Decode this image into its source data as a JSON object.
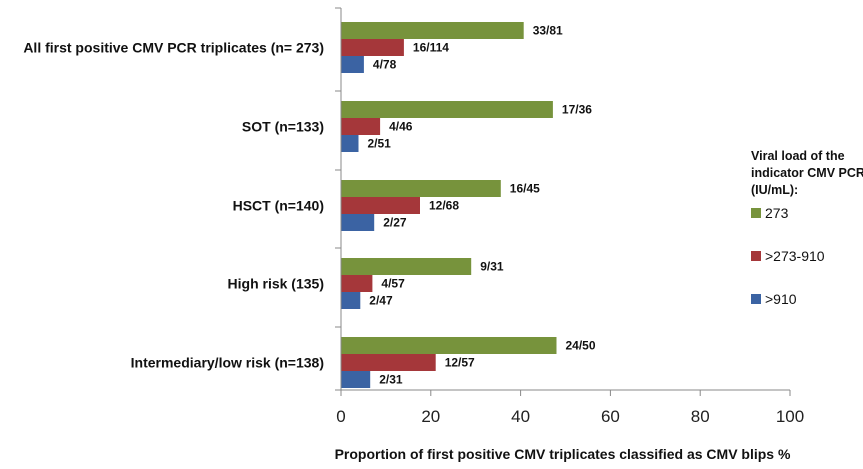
{
  "chart_data": {
    "type": "bar",
    "orientation": "horizontal",
    "categories": [
      "All first positive CMV PCR triplicates (n= 273)",
      "SOT (n=133)",
      "HSCT (n=140)",
      "High risk (135)",
      "Intermediary/low risk (n=138)"
    ],
    "series": [
      {
        "name": "273",
        "color": "#77933C",
        "values": [
          40.7,
          47.2,
          35.6,
          29.0,
          48.0
        ],
        "labels": [
          "33/81",
          "17/36",
          "16/45",
          "9/31",
          "24/50"
        ]
      },
      {
        "name": ">273-910",
        "color": "#A5373A",
        "values": [
          14.0,
          8.7,
          17.6,
          7.0,
          21.1
        ],
        "labels": [
          "16/114",
          "4/46",
          "12/68",
          "4/57",
          "12/57"
        ]
      },
      {
        "name": ">910",
        "color": "#3B63A3",
        "values": [
          5.1,
          3.9,
          7.4,
          4.3,
          6.5
        ],
        "labels": [
          "4/78",
          "2/51",
          "2/27",
          "2/47",
          "2/31"
        ]
      }
    ],
    "xlabel": "Proportion of first positive CMV triplicates classified as CMV blips %",
    "xlim": [
      0,
      100
    ],
    "xticks": [
      0,
      20,
      40,
      60,
      80,
      100
    ],
    "grid": false,
    "legend": {
      "title": [
        "Viral load of the",
        "indicator CMV PCR",
        "(IU/mL):"
      ],
      "position": "right"
    }
  }
}
